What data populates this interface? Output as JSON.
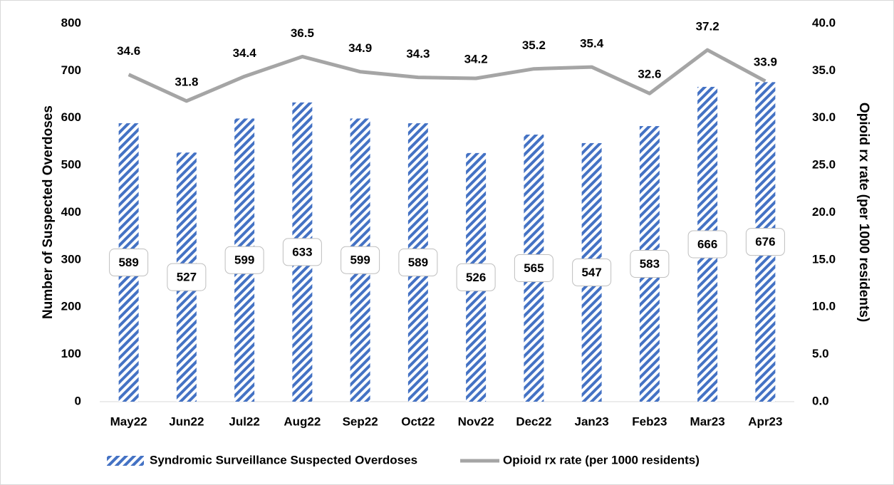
{
  "chart_data": {
    "type": "bar",
    "categories": [
      "May22",
      "Jun22",
      "Jul22",
      "Aug22",
      "Sep22",
      "Oct22",
      "Nov22",
      "Dec22",
      "Jan23",
      "Feb23",
      "Mar23",
      "Apr23"
    ],
    "series": [
      {
        "name": "Syndromic Surveillance Suspected Overdoses",
        "type": "bar",
        "color": "#4472c4",
        "values": [
          589,
          527,
          599,
          633,
          599,
          589,
          526,
          565,
          547,
          583,
          666,
          676
        ]
      },
      {
        "name": "Opioid rx rate (per 1000 residents)",
        "type": "line",
        "axis": "y2",
        "color": "#a5a5a5",
        "values": [
          34.6,
          31.8,
          34.4,
          36.5,
          34.9,
          34.3,
          34.2,
          35.2,
          35.4,
          32.6,
          37.2,
          33.9
        ]
      }
    ],
    "ylabel": "Number of Suspected Overdoses",
    "y2label": "Opioid rx rate (per 1000 residents)",
    "ylim": [
      0,
      800
    ],
    "yticks": [
      0,
      100,
      200,
      300,
      400,
      500,
      600,
      700,
      800
    ],
    "y2lim": [
      0,
      40
    ],
    "y2ticks": [
      {
        "value": 0,
        "label": "0.0"
      },
      {
        "value": 5,
        "label": "5.0"
      },
      {
        "value": 10,
        "label": "10.0"
      },
      {
        "value": 15,
        "label": "15.0"
      },
      {
        "value": 20,
        "label": "20.0"
      },
      {
        "value": 25,
        "label": "25.0"
      },
      {
        "value": 30,
        "label": "30.0"
      },
      {
        "value": 35,
        "label": "35.0"
      },
      {
        "value": 40,
        "label": "40.0"
      }
    ],
    "grid": false,
    "legend": "bottom"
  }
}
